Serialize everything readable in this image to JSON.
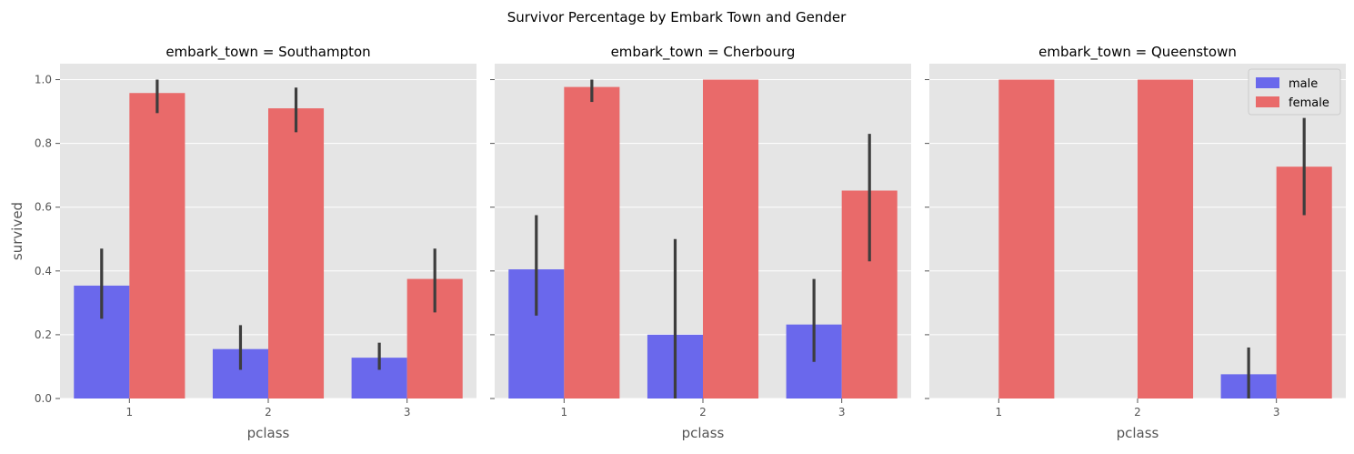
{
  "figure_title": "Survivor Percentage by Embark Town and Gender",
  "colors": {
    "male": "#6a68ec",
    "female": "#e96a6a",
    "panel_bg": "#e5e5e5",
    "grid": "#ffffff",
    "errorbar": "#3d3d3d",
    "text": "#555555"
  },
  "chart_data": [
    {
      "type": "bar",
      "title": "embark_town = Southampton",
      "xlabel": "pclass",
      "ylabel": "survived",
      "categories": [
        "1",
        "2",
        "3"
      ],
      "ylim": [
        0,
        1.05
      ],
      "yticks": [
        "0.0",
        "0.2",
        "0.4",
        "0.6",
        "0.8",
        "1.0"
      ],
      "grid": true,
      "series": [
        {
          "name": "male",
          "values": [
            0.354,
            0.155,
            0.128
          ],
          "ci": [
            [
              0.25,
              0.47
            ],
            [
              0.09,
              0.23
            ],
            [
              0.09,
              0.175
            ]
          ]
        },
        {
          "name": "female",
          "values": [
            0.958,
            0.91,
            0.375
          ],
          "ci": [
            [
              0.895,
              1.0
            ],
            [
              0.835,
              0.975
            ],
            [
              0.27,
              0.47
            ]
          ]
        }
      ]
    },
    {
      "type": "bar",
      "title": "embark_town = Cherbourg",
      "xlabel": "pclass",
      "ylabel": "",
      "categories": [
        "1",
        "2",
        "3"
      ],
      "ylim": [
        0,
        1.05
      ],
      "grid": true,
      "series": [
        {
          "name": "male",
          "values": [
            0.405,
            0.2,
            0.232
          ],
          "ci": [
            [
              0.26,
              0.575
            ],
            [
              0.0,
              0.5
            ],
            [
              0.115,
              0.375
            ]
          ]
        },
        {
          "name": "female",
          "values": [
            0.977,
            1.0,
            0.652
          ],
          "ci": [
            [
              0.93,
              1.0
            ],
            [
              1.0,
              1.0
            ],
            [
              0.43,
              0.83
            ]
          ]
        }
      ]
    },
    {
      "type": "bar",
      "title": "embark_town = Queenstown",
      "xlabel": "pclass",
      "ylabel": "",
      "categories": [
        "1",
        "2",
        "3"
      ],
      "ylim": [
        0,
        1.05
      ],
      "grid": true,
      "legend_position": "top-right",
      "series": [
        {
          "name": "male",
          "values": [
            0.0,
            0.0,
            0.076
          ],
          "ci": [
            [
              0.0,
              0.0
            ],
            [
              0.0,
              0.0
            ],
            [
              0.0,
              0.16
            ]
          ]
        },
        {
          "name": "female",
          "values": [
            1.0,
            1.0,
            0.727
          ],
          "ci": [
            [
              1.0,
              1.0
            ],
            [
              1.0,
              1.0
            ],
            [
              0.575,
              0.88
            ]
          ]
        }
      ]
    }
  ],
  "legend": [
    {
      "label": "male",
      "color_key": "male"
    },
    {
      "label": "female",
      "color_key": "female"
    }
  ]
}
